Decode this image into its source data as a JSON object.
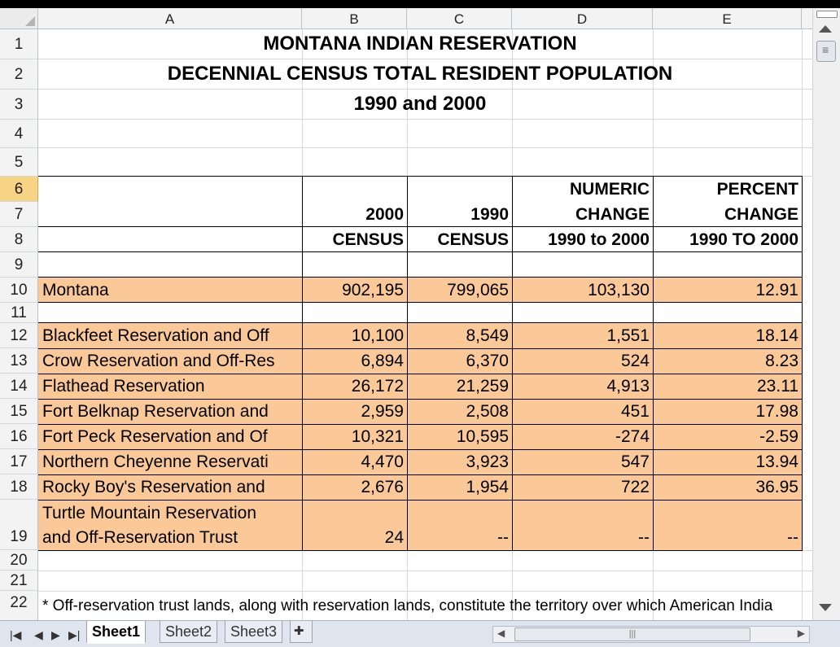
{
  "columns": [
    "A",
    "B",
    "C",
    "D",
    "E"
  ],
  "rows": [
    "1",
    "2",
    "3",
    "4",
    "5",
    "6",
    "7",
    "8",
    "9",
    "10",
    "11",
    "12",
    "13",
    "14",
    "15",
    "16",
    "17",
    "18",
    "19",
    "20",
    "21",
    "22"
  ],
  "titles": {
    "line1": "MONTANA INDIAN RESERVATION",
    "line2": "DECENNIAL CENSUS TOTAL RESIDENT POPULATION",
    "line3": "1990 and 2000"
  },
  "headers": {
    "d6": "NUMERIC",
    "e6": "PERCENT",
    "b7": "2000",
    "c7": "1990",
    "d7": "CHANGE",
    "e7": "CHANGE",
    "b8": "CENSUS",
    "c8": "CENSUS",
    "d8": "1990 to 2000",
    "e8": "1990 TO 2000"
  },
  "montana": {
    "name": "Montana",
    "c2000": "902,195",
    "c1990": "799,065",
    "numeric": "103,130",
    "percent": "12.91"
  },
  "reservations": [
    {
      "name": "Blackfeet Reservation and Off",
      "c2000": "10,100",
      "c1990": "8,549",
      "numeric": "1,551",
      "percent": "18.14"
    },
    {
      "name": "Crow Reservation and Off-Res",
      "c2000": "6,894",
      "c1990": "6,370",
      "numeric": "524",
      "percent": "8.23"
    },
    {
      "name": "Flathead Reservation",
      "c2000": "26,172",
      "c1990": "21,259",
      "numeric": "4,913",
      "percent": "23.11"
    },
    {
      "name": "Fort Belknap Reservation and",
      "c2000": "2,959",
      "c1990": "2,508",
      "numeric": "451",
      "percent": "17.98"
    },
    {
      "name": "Fort Peck Reservation and Of",
      "c2000": "10,321",
      "c1990": "10,595",
      "numeric": "-274",
      "percent": "-2.59"
    },
    {
      "name": "Northern Cheyenne Reservati",
      "c2000": "4,470",
      "c1990": "3,923",
      "numeric": "547",
      "percent": "13.94"
    },
    {
      "name": "Rocky Boy's Reservation and",
      "c2000": "2,676",
      "c1990": "1,954",
      "numeric": "722",
      "percent": "36.95"
    }
  ],
  "turtle": {
    "line1": "Turtle Mountain Reservation",
    "line2": "and Off-Reservation Trust",
    "c2000": "24",
    "c1990": "--",
    "numeric": "--",
    "percent": "--"
  },
  "footnote": "* Off-reservation trust lands, along with reservation lands, constitute the territory over which American India",
  "sheets": [
    "Sheet1",
    "Sheet2",
    "Sheet3"
  ],
  "colors": {
    "row_fill": "#fbc997",
    "selected_header": "#f8d384"
  }
}
